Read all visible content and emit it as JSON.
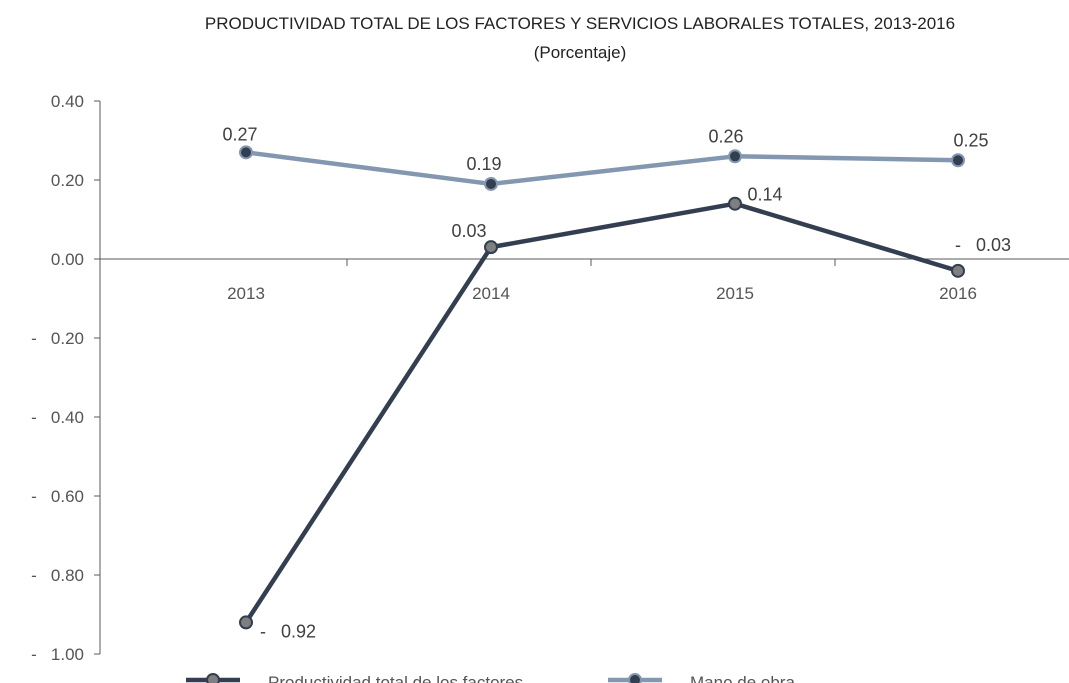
{
  "chart_data": {
    "type": "line",
    "title": "PRODUCTIVIDAD TOTAL DE LOS FACTORES Y SERVICIOS LABORALES TOTALES, 2013-2016",
    "subtitle": "(Porcentaje)",
    "categories": [
      "2013",
      "2014",
      "2015",
      "2016"
    ],
    "ylim": [
      -1.0,
      0.4
    ],
    "yticks": [
      0.4,
      0.2,
      0.0,
      -0.2,
      -0.4,
      -0.6,
      -0.8,
      -1.0
    ],
    "ytick_labels": [
      "0.40",
      "0.20",
      "0.00",
      "-   0.20",
      "-   0.40",
      "-   0.60",
      "-   0.80",
      "-   1.00"
    ],
    "grid": false,
    "legend_position": "bottom",
    "series": [
      {
        "name": "Productividad total de los factores",
        "values": [
          -0.92,
          0.03,
          0.14,
          -0.03
        ],
        "labels": [
          "-   0.92",
          "0.03",
          "0.14",
          "-   0.03"
        ],
        "color": "#333f50",
        "marker_fill": "#7f7f7f"
      },
      {
        "name": "Mano de obra",
        "values": [
          0.27,
          0.19,
          0.26,
          0.25
        ],
        "labels": [
          "0.27",
          "0.19",
          "0.26",
          "0.25"
        ],
        "color": "#8497b0",
        "marker_fill": "#333f50"
      }
    ]
  }
}
